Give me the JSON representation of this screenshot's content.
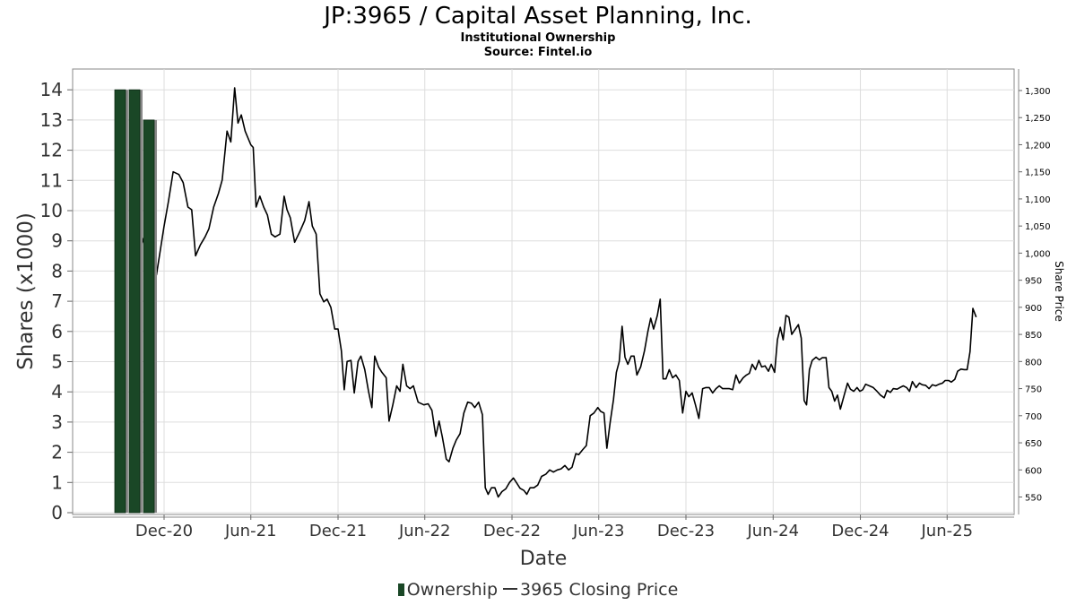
{
  "title": "JP:3965 / Capital Asset Planning, Inc.",
  "subtitle1": "Institutional Ownership",
  "subtitle2": "Source: Fintel.io",
  "chart_data": {
    "type": "bar+line",
    "xlabel": "Date",
    "ylabel_left": "Shares (x1000)",
    "ylabel_right": "Share Price",
    "ylim_left": [
      0,
      14
    ],
    "ylim_right": [
      520,
      1330
    ],
    "yticks_left": [
      "0",
      "1",
      "2",
      "3",
      "4",
      "5",
      "6",
      "7",
      "8",
      "9",
      "10",
      "11",
      "12",
      "13",
      "14"
    ],
    "yticks_right": [
      "550",
      "600",
      "650",
      "700",
      "750",
      "800",
      "850",
      "900",
      "950",
      "1,000",
      "1,050",
      "1,100",
      "1,150",
      "1,200",
      "1,250",
      "1,300"
    ],
    "xticks": [
      "Dec-20",
      "Jun-21",
      "Dec-21",
      "Jun-22",
      "Dec-22",
      "Jun-23",
      "Dec-23",
      "Jun-24",
      "Dec-24",
      "Jun-25"
    ],
    "legend": [
      "Ownership",
      "3965 Closing Price"
    ],
    "legend_position": "bottom",
    "grid": true,
    "colors": {
      "bars": "#1a4726",
      "price_line": "#000000",
      "grid": "#dddddd"
    },
    "ownership": [
      {
        "date": "2020-09-30",
        "value": 14
      },
      {
        "date": "2020-10-31",
        "value": 14
      },
      {
        "date": "2020-11-30",
        "value": 13
      }
    ],
    "price": [
      [
        "2020-10-01",
        1065
      ],
      [
        "2020-10-15",
        1030
      ],
      [
        "2020-11-01",
        985
      ],
      [
        "2020-11-15",
        960
      ],
      [
        "2020-12-01",
        1050
      ],
      [
        "2020-12-10",
        1095
      ],
      [
        "2020-12-20",
        1150
      ],
      [
        "2021-01-01",
        1145
      ],
      [
        "2021-01-10",
        1130
      ],
      [
        "2021-01-20",
        1085
      ],
      [
        "2021-01-28",
        1080
      ],
      [
        "2021-02-05",
        995
      ],
      [
        "2021-02-15",
        1015
      ],
      [
        "2021-02-25",
        1030
      ],
      [
        "2021-03-05",
        1045
      ],
      [
        "2021-03-15",
        1085
      ],
      [
        "2021-03-25",
        1110
      ],
      [
        "2021-04-02",
        1135
      ],
      [
        "2021-04-12",
        1225
      ],
      [
        "2021-04-20",
        1205
      ],
      [
        "2021-04-28",
        1305
      ],
      [
        "2021-05-05",
        1240
      ],
      [
        "2021-05-12",
        1255
      ],
      [
        "2021-05-20",
        1225
      ],
      [
        "2021-06-01",
        1200
      ],
      [
        "2021-06-06",
        1195
      ],
      [
        "2021-06-12",
        1085
      ],
      [
        "2021-06-20",
        1105
      ],
      [
        "2021-06-28",
        1085
      ],
      [
        "2021-07-06",
        1070
      ],
      [
        "2021-07-14",
        1035
      ],
      [
        "2021-07-22",
        1030
      ],
      [
        "2021-08-01",
        1035
      ],
      [
        "2021-08-10",
        1105
      ],
      [
        "2021-08-16",
        1080
      ],
      [
        "2021-08-23",
        1065
      ],
      [
        "2021-09-01",
        1020
      ],
      [
        "2021-09-12",
        1040
      ],
      [
        "2021-09-22",
        1060
      ],
      [
        "2021-10-01",
        1095
      ],
      [
        "2021-10-08",
        1050
      ],
      [
        "2021-10-16",
        1035
      ],
      [
        "2021-10-24",
        925
      ],
      [
        "2021-11-01",
        910
      ],
      [
        "2021-11-08",
        915
      ],
      [
        "2021-11-16",
        900
      ],
      [
        "2021-11-24",
        860
      ],
      [
        "2021-12-01",
        860
      ],
      [
        "2021-12-08",
        820
      ],
      [
        "2021-12-14",
        748
      ],
      [
        "2021-12-20",
        800
      ],
      [
        "2021-12-28",
        802
      ],
      [
        "2022-01-04",
        742
      ],
      [
        "2022-01-12",
        800
      ],
      [
        "2022-01-18",
        810
      ],
      [
        "2022-01-26",
        785
      ],
      [
        "2022-02-03",
        745
      ],
      [
        "2022-02-10",
        715
      ],
      [
        "2022-02-16",
        810
      ],
      [
        "2022-02-24",
        790
      ],
      [
        "2022-03-03",
        780
      ],
      [
        "2022-03-12",
        770
      ],
      [
        "2022-03-18",
        690
      ],
      [
        "2022-03-26",
        720
      ],
      [
        "2022-04-03",
        755
      ],
      [
        "2022-04-10",
        745
      ],
      [
        "2022-04-16",
        795
      ],
      [
        "2022-04-24",
        755
      ],
      [
        "2022-05-01",
        750
      ],
      [
        "2022-05-08",
        755
      ],
      [
        "2022-05-18",
        725
      ],
      [
        "2022-05-30",
        720
      ],
      [
        "2022-06-08",
        722
      ],
      [
        "2022-06-16",
        710
      ],
      [
        "2022-06-24",
        662
      ],
      [
        "2022-07-01",
        690
      ],
      [
        "2022-07-08",
        660
      ],
      [
        "2022-07-16",
        620
      ],
      [
        "2022-07-22",
        615
      ],
      [
        "2022-07-30",
        640
      ],
      [
        "2022-08-06",
        655
      ],
      [
        "2022-08-14",
        667
      ],
      [
        "2022-08-22",
        705
      ],
      [
        "2022-08-30",
        725
      ],
      [
        "2022-09-07",
        723
      ],
      [
        "2022-09-14",
        715
      ],
      [
        "2022-09-22",
        725
      ],
      [
        "2022-09-30",
        702
      ],
      [
        "2022-10-06",
        567
      ],
      [
        "2022-10-12",
        555
      ],
      [
        "2022-10-19",
        567
      ],
      [
        "2022-10-26",
        567
      ],
      [
        "2022-11-02",
        550
      ],
      [
        "2022-11-10",
        560
      ],
      [
        "2022-11-18",
        565
      ],
      [
        "2022-11-26",
        577
      ],
      [
        "2022-12-04",
        585
      ],
      [
        "2022-12-10",
        577
      ],
      [
        "2022-12-18",
        566
      ],
      [
        "2022-12-26",
        562
      ],
      [
        "2023-01-01",
        555
      ],
      [
        "2023-01-08",
        567
      ],
      [
        "2023-01-16",
        567
      ],
      [
        "2023-01-24",
        572
      ],
      [
        "2023-02-01",
        588
      ],
      [
        "2023-02-10",
        592
      ],
      [
        "2023-02-18",
        600
      ],
      [
        "2023-02-26",
        596
      ],
      [
        "2023-03-06",
        600
      ],
      [
        "2023-03-14",
        602
      ],
      [
        "2023-03-22",
        608
      ],
      [
        "2023-03-30",
        600
      ],
      [
        "2023-04-06",
        605
      ],
      [
        "2023-04-14",
        630
      ],
      [
        "2023-04-20",
        628
      ],
      [
        "2023-04-28",
        637
      ],
      [
        "2023-05-06",
        645
      ],
      [
        "2023-05-14",
        700
      ],
      [
        "2023-05-22",
        705
      ],
      [
        "2023-05-30",
        715
      ],
      [
        "2023-06-05",
        708
      ],
      [
        "2023-06-12",
        705
      ],
      [
        "2023-06-18",
        640
      ],
      [
        "2023-06-25",
        688
      ],
      [
        "2023-07-02",
        730
      ],
      [
        "2023-07-08",
        780
      ],
      [
        "2023-07-14",
        800
      ],
      [
        "2023-07-20",
        865
      ],
      [
        "2023-07-26",
        808
      ],
      [
        "2023-08-01",
        795
      ],
      [
        "2023-08-08",
        810
      ],
      [
        "2023-08-14",
        810
      ],
      [
        "2023-08-20",
        775
      ],
      [
        "2023-08-28",
        790
      ],
      [
        "2023-09-05",
        820
      ],
      [
        "2023-09-12",
        855
      ],
      [
        "2023-09-18",
        880
      ],
      [
        "2023-09-24",
        860
      ],
      [
        "2023-10-02",
        885
      ],
      [
        "2023-10-08",
        915
      ],
      [
        "2023-10-14",
        768
      ],
      [
        "2023-10-20",
        768
      ],
      [
        "2023-10-27",
        785
      ],
      [
        "2023-11-03",
        770
      ],
      [
        "2023-11-10",
        775
      ],
      [
        "2023-11-17",
        765
      ],
      [
        "2023-11-24",
        705
      ],
      [
        "2023-12-01",
        745
      ],
      [
        "2023-12-07",
        735
      ],
      [
        "2023-12-14",
        742
      ],
      [
        "2023-12-21",
        720
      ],
      [
        "2023-12-28",
        695
      ],
      [
        "2024-01-05",
        750
      ],
      [
        "2024-01-12",
        752
      ],
      [
        "2024-01-19",
        752
      ],
      [
        "2024-01-26",
        742
      ],
      [
        "2024-02-02",
        750
      ],
      [
        "2024-02-09",
        755
      ],
      [
        "2024-02-16",
        750
      ],
      [
        "2024-02-23",
        750
      ],
      [
        "2024-03-01",
        750
      ],
      [
        "2024-03-08",
        748
      ],
      [
        "2024-03-15",
        775
      ],
      [
        "2024-03-22",
        760
      ],
      [
        "2024-03-30",
        770
      ],
      [
        "2024-04-06",
        775
      ],
      [
        "2024-04-12",
        778
      ],
      [
        "2024-04-18",
        795
      ],
      [
        "2024-04-25",
        785
      ],
      [
        "2024-05-02",
        802
      ],
      [
        "2024-05-08",
        790
      ],
      [
        "2024-05-15",
        792
      ],
      [
        "2024-05-22",
        782
      ],
      [
        "2024-05-28",
        795
      ],
      [
        "2024-06-04",
        780
      ],
      [
        "2024-06-10",
        840
      ],
      [
        "2024-06-16",
        863
      ],
      [
        "2024-06-22",
        840
      ],
      [
        "2024-06-28",
        885
      ],
      [
        "2024-07-04",
        882
      ],
      [
        "2024-07-10",
        850
      ],
      [
        "2024-07-16",
        858
      ],
      [
        "2024-07-24",
        868
      ],
      [
        "2024-07-30",
        843
      ],
      [
        "2024-08-05",
        728
      ],
      [
        "2024-08-10",
        720
      ],
      [
        "2024-08-16",
        785
      ],
      [
        "2024-08-22",
        802
      ],
      [
        "2024-08-30",
        808
      ],
      [
        "2024-09-06",
        803
      ],
      [
        "2024-09-12",
        807
      ],
      [
        "2024-09-20",
        807
      ],
      [
        "2024-09-26",
        752
      ],
      [
        "2024-10-02",
        745
      ],
      [
        "2024-10-08",
        727
      ],
      [
        "2024-10-14",
        738
      ],
      [
        "2024-10-20",
        712
      ],
      [
        "2024-10-28",
        738
      ],
      [
        "2024-11-04",
        760
      ],
      [
        "2024-11-10",
        749
      ],
      [
        "2024-11-17",
        745
      ],
      [
        "2024-11-24",
        752
      ],
      [
        "2024-11-30",
        745
      ],
      [
        "2024-12-06",
        748
      ],
      [
        "2024-12-12",
        758
      ],
      [
        "2024-12-20",
        755
      ],
      [
        "2024-12-28",
        752
      ],
      [
        "2025-01-05",
        745
      ],
      [
        "2025-01-12",
        738
      ],
      [
        "2025-01-20",
        733
      ],
      [
        "2025-01-26",
        747
      ],
      [
        "2025-02-02",
        743
      ],
      [
        "2025-02-08",
        750
      ],
      [
        "2025-02-16",
        749
      ],
      [
        "2025-02-22",
        752
      ],
      [
        "2025-03-01",
        755
      ],
      [
        "2025-03-08",
        752
      ],
      [
        "2025-03-14",
        745
      ],
      [
        "2025-03-20",
        763
      ],
      [
        "2025-03-28",
        752
      ],
      [
        "2025-04-04",
        760
      ],
      [
        "2025-04-10",
        757
      ],
      [
        "2025-04-17",
        756
      ],
      [
        "2025-04-24",
        750
      ],
      [
        "2025-05-01",
        757
      ],
      [
        "2025-05-08",
        755
      ],
      [
        "2025-05-15",
        758
      ],
      [
        "2025-05-22",
        760
      ],
      [
        "2025-05-28",
        765
      ],
      [
        "2025-06-04",
        765
      ],
      [
        "2025-06-10",
        762
      ],
      [
        "2025-06-17",
        767
      ],
      [
        "2025-06-23",
        782
      ],
      [
        "2025-06-30",
        786
      ],
      [
        "2025-07-07",
        785
      ],
      [
        "2025-07-13",
        785
      ],
      [
        "2025-07-19",
        818
      ],
      [
        "2025-07-25",
        898
      ],
      [
        "2025-08-01",
        882
      ]
    ]
  }
}
